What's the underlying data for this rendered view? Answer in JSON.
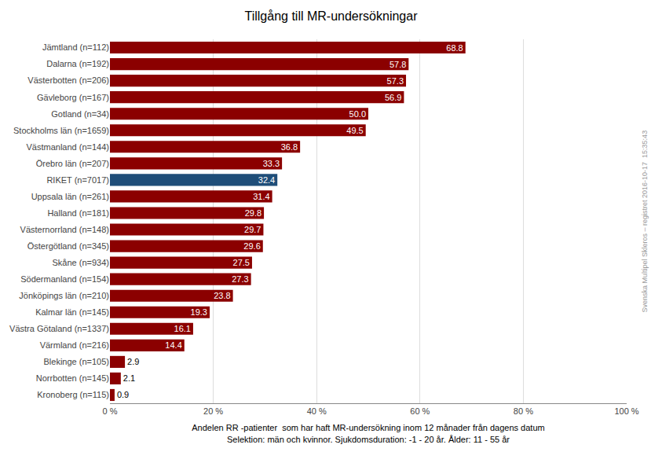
{
  "chart_data": {
    "type": "bar",
    "orientation": "horizontal",
    "title": "Tillgång till MR-undersökningar",
    "xlabel": "Andelen RR -patienter  som har haft MR-undersökning inom 12 månader från dagens datum\nSelektion: män och kvinnor. Sjukdomsduration: -1 - 20 år. Ålder: 11 - 55 år",
    "annotations": [
      "Svenska Multipel Skleros – registret 2016-10-17  15:35:43"
    ],
    "categories": [
      "Kronoberg (n=115)",
      "Norrbotten (n=145)",
      "Blekinge (n=105)",
      "Värmland (n=216)",
      "Västra Götaland (n=1337)",
      "Kalmar län (n=145)",
      "Jönköpings län (n=210)",
      "Södermanland (n=154)",
      "Skåne (n=934)",
      "Östergötland (n=345)",
      "Västernorrland (n=148)",
      "Halland (n=181)",
      "Uppsala län (n=261)",
      "RIKET (n=7017)",
      "Örebro län (n=207)",
      "Västmanland (n=144)",
      "Stockholms län (n=1659)",
      "Gotland (n=34)",
      "Gävleborg (n=167)",
      "Västerbotten (n=206)",
      "Dalarna (n=192)",
      "Jämtland (n=112)"
    ],
    "values": [
      0.9,
      2.1,
      2.9,
      14.4,
      16.1,
      19.3,
      23.8,
      27.3,
      27.5,
      29.6,
      29.7,
      29.8,
      31.4,
      32.4,
      33.3,
      36.8,
      49.5,
      50.0,
      56.9,
      57.3,
      57.8,
      68.8
    ],
    "value_labels": [
      "0.9",
      "2.1",
      "2.9",
      "14.4",
      "16.1",
      "19.3",
      "23.8",
      "27.3",
      "27.5",
      "29.6",
      "29.7",
      "29.8",
      "31.4",
      "32.4",
      "33.3",
      "36.8",
      "49.5",
      "50.0",
      "56.9",
      "57.3",
      "57.8",
      "68.8"
    ],
    "colors": [
      "#8B0000",
      "#8B0000",
      "#8B0000",
      "#8B0000",
      "#8B0000",
      "#8B0000",
      "#8B0000",
      "#8B0000",
      "#8B0000",
      "#8B0000",
      "#8B0000",
      "#8B0000",
      "#8B0000",
      "#1F4E79",
      "#8B0000",
      "#8B0000",
      "#8B0000",
      "#8B0000",
      "#8B0000",
      "#8B0000",
      "#8B0000",
      "#8B0000"
    ],
    "xlim": [
      0,
      100
    ],
    "xticks": [
      {
        "value": 0,
        "label": "0 %"
      },
      {
        "value": 20,
        "label": "20 %"
      },
      {
        "value": 40,
        "label": "40 %"
      },
      {
        "value": 60,
        "label": "60 %"
      },
      {
        "value": 80,
        "label": "80 %"
      },
      {
        "value": 100,
        "label": "100 %"
      }
    ],
    "grid": true,
    "data_labels": true
  }
}
